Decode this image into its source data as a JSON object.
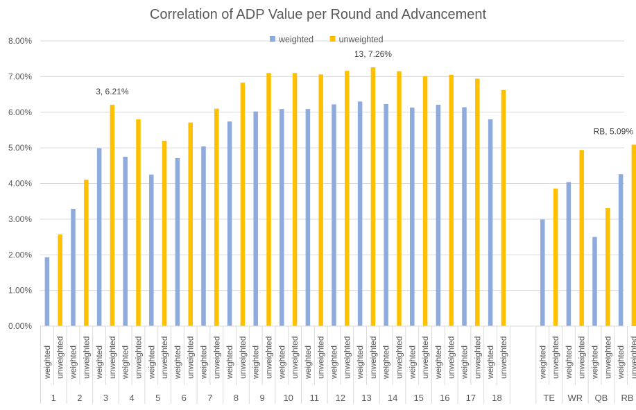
{
  "chart_data": {
    "type": "bar",
    "title": "Correlation  of ADP Value per Round and Advancement",
    "xlabel": "",
    "ylabel": "",
    "ylim": [
      0,
      0.08
    ],
    "y_ticks": [
      "0.00%",
      "1.00%",
      "2.00%",
      "3.00%",
      "4.00%",
      "5.00%",
      "6.00%",
      "7.00%",
      "8.00%"
    ],
    "grid": true,
    "legend_position": "top",
    "series": [
      {
        "name": "weighted",
        "color": "#8faadc"
      },
      {
        "name": "unweighted",
        "color": "#ffc000"
      }
    ],
    "groups": [
      {
        "label": "1",
        "weighted": 0.0193,
        "unweighted": 0.0257
      },
      {
        "label": "2",
        "weighted": 0.0329,
        "unweighted": 0.0411
      },
      {
        "label": "3",
        "weighted": 0.0499,
        "unweighted": 0.0621
      },
      {
        "label": "4",
        "weighted": 0.0475,
        "unweighted": 0.058
      },
      {
        "label": "5",
        "weighted": 0.0425,
        "unweighted": 0.052
      },
      {
        "label": "6",
        "weighted": 0.0471,
        "unweighted": 0.0571
      },
      {
        "label": "7",
        "weighted": 0.0504,
        "unweighted": 0.061
      },
      {
        "label": "8",
        "weighted": 0.0574,
        "unweighted": 0.0683
      },
      {
        "label": "9",
        "weighted": 0.0602,
        "unweighted": 0.071
      },
      {
        "label": "10",
        "weighted": 0.0609,
        "unweighted": 0.071
      },
      {
        "label": "11",
        "weighted": 0.0609,
        "unweighted": 0.0706
      },
      {
        "label": "12",
        "weighted": 0.0622,
        "unweighted": 0.0716
      },
      {
        "label": "13",
        "weighted": 0.063,
        "unweighted": 0.0726
      },
      {
        "label": "14",
        "weighted": 0.0623,
        "unweighted": 0.0715
      },
      {
        "label": "15",
        "weighted": 0.0613,
        "unweighted": 0.0701
      },
      {
        "label": "16",
        "weighted": 0.0621,
        "unweighted": 0.0705
      },
      {
        "label": "17",
        "weighted": 0.0614,
        "unweighted": 0.0694
      },
      {
        "label": "18",
        "weighted": 0.058,
        "unweighted": 0.0662
      },
      {
        "label": "TE",
        "weighted": 0.0299,
        "unweighted": 0.0386
      },
      {
        "label": "WR",
        "weighted": 0.0404,
        "unweighted": 0.0494
      },
      {
        "label": "QB",
        "weighted": 0.025,
        "unweighted": 0.0331
      },
      {
        "label": "RB",
        "weighted": 0.0426,
        "unweighted": 0.0509
      }
    ],
    "annotations": [
      {
        "group": "3",
        "series": "unweighted",
        "text": "3, 6.21%"
      },
      {
        "group": "13",
        "series": "unweighted",
        "text": "13, 7.26%"
      },
      {
        "group": "RB",
        "series": "unweighted",
        "text": "RB, 5.09%"
      }
    ]
  }
}
